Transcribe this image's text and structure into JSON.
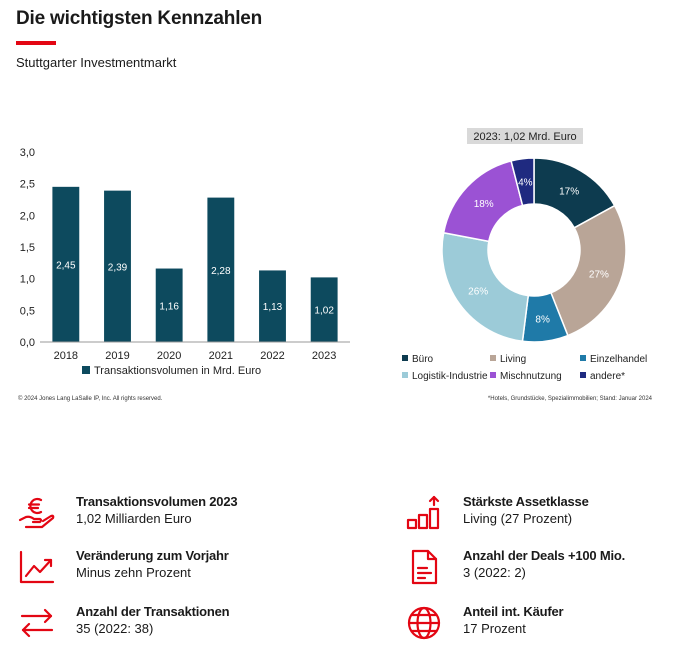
{
  "header": {
    "title": "Die wichtigsten Kennzahlen",
    "subtitle": "Stuttgarter Investmentmarkt",
    "accent_color": "#e30613"
  },
  "chart_data": [
    {
      "type": "bar",
      "categories": [
        "2018",
        "2019",
        "2020",
        "2021",
        "2022",
        "2023"
      ],
      "series": [
        {
          "name": "Transaktionsvolumen in Mrd. Euro",
          "values": [
            2.45,
            2.39,
            1.16,
            2.28,
            1.13,
            1.02
          ],
          "labels": [
            "2,45",
            "2,39",
            "1,16",
            "2,28",
            "1,13",
            "1,02"
          ],
          "color": "#0d4a5e"
        }
      ],
      "ylim": [
        0,
        3.0
      ],
      "yticks": [
        "0,0",
        "0,5",
        "1,0",
        "1,5",
        "2,0",
        "2,5",
        "3,0"
      ],
      "grid": false,
      "legend": "bottom"
    },
    {
      "type": "pie",
      "title": "2023: 1,02 Mrd. Euro",
      "slices": [
        {
          "name": "Büro",
          "value": 17,
          "label": "17%",
          "color": "#0d3b4f"
        },
        {
          "name": "Living",
          "value": 27,
          "label": "27%",
          "color": "#b9a597"
        },
        {
          "name": "Einzelhandel",
          "value": 8,
          "label": "8%",
          "color": "#1f7aa8"
        },
        {
          "name": "Logistik-Industrie",
          "value": 26,
          "label": "26%",
          "color": "#9ccbd8"
        },
        {
          "name": "Mischnutzung",
          "value": 18,
          "label": "18%",
          "color": "#9b52d4"
        },
        {
          "name": "andere*",
          "value": 4,
          "label": "4%",
          "color": "#1f2a80"
        }
      ],
      "legend": "bottom"
    }
  ],
  "footer": {
    "copyright": "© 2024 Jones Lang LaSalle IP, Inc. All rights reserved.",
    "footnote": "*Hotels, Grundstücke, Spezialimmobilien; Stand: Januar 2024"
  },
  "kpis": [
    {
      "icon": "euro-hand-icon",
      "label": "Transaktionsvolumen 2023",
      "value": "1,02 Milliarden Euro"
    },
    {
      "icon": "trend-chart-icon",
      "label": "Veränderung zum Vorjahr",
      "value": "Minus zehn Prozent"
    },
    {
      "icon": "exchange-arrows-icon",
      "label": "Anzahl der Transaktionen",
      "value": "35 (2022: 38)"
    },
    {
      "icon": "bar-growth-icon",
      "label": "Stärkste Assetklasse",
      "value": "Living (27 Prozent)"
    },
    {
      "icon": "document-icon",
      "label": "Anzahl der Deals +100 Mio.",
      "value": "3 (2022: 2)"
    },
    {
      "icon": "globe-icon",
      "label": "Anteil int. Käufer",
      "value": "17 Prozent"
    }
  ]
}
